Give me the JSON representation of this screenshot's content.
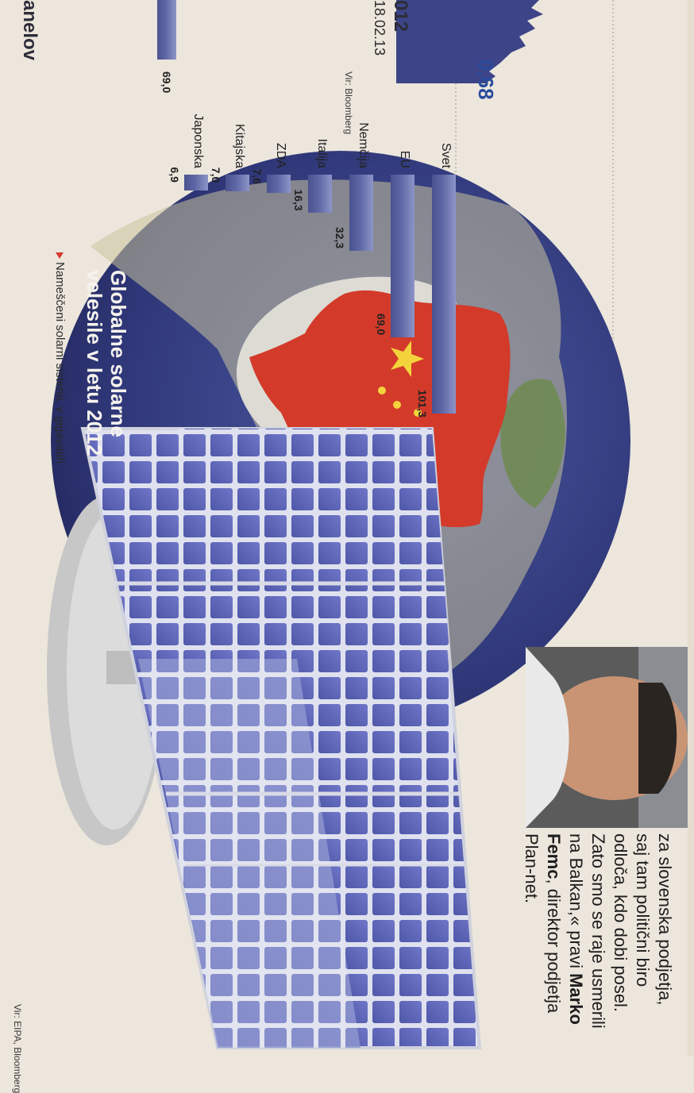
{
  "top_section": {
    "heading_fragment": "anelov",
    "year_fragment": "012",
    "end_date": "18.02.13",
    "current_value": "0,68",
    "source": "Vir: Bloomberg"
  },
  "chart_data": {
    "type": "bar",
    "title": "Globalne solarne velesile v letu 2012",
    "legend": "Nameščeni solarni sistemi, v gigavatih",
    "categories": [
      "Svet",
      "EU",
      "Nemčija",
      "Italija",
      "ZDA",
      "Kitajska",
      "Japonska"
    ],
    "values": [
      101.3,
      69.0,
      32.3,
      16.3,
      7.6,
      7.0,
      6.9
    ],
    "value_labels": [
      "101,3",
      "69,0",
      "32,3",
      "16,3",
      "7,6",
      "7,0",
      "6,9"
    ],
    "cut_off_bar_label": "69,0",
    "source": "Vir: EIPA, Bloomberg",
    "colors": {
      "bar": "#5f67a6",
      "marker": "#d63a2f"
    }
  },
  "article": {
    "lines": [
      "za slovenska podjetja,",
      "saj tam politični biro",
      "odloča, kdo dobi posel.",
      "Zato smo se raje usmerili"
    ],
    "line5_prefix": "na Balkan,« pravi ",
    "line5_bold": "Marko",
    "line6_bold": "Femc",
    "line6_suffix": ", direktor podjetja",
    "line7": "Plan-net."
  }
}
